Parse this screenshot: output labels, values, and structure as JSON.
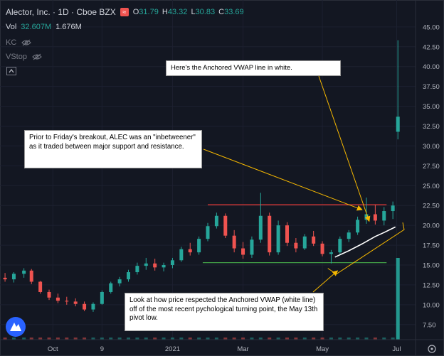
{
  "header": {
    "title": "Alector, Inc. · 1D · Cboe BZX",
    "ohlc": [
      {
        "key": "O",
        "value": "31.79"
      },
      {
        "key": "H",
        "value": "43.32"
      },
      {
        "key": "L",
        "value": "30.83"
      },
      {
        "key": "C",
        "value": "33.69"
      }
    ],
    "volume_label": "Vol",
    "volume_value_1": "32.607M",
    "volume_value_2": "1.676M",
    "indicator_1": "KC",
    "indicator_2": "VStop"
  },
  "annotations": {
    "vwap_note": "Here's the Anchored VWAP line in white.",
    "range_note": "Prior to Friday's breakout, ALEC was an \"inbetweener\" as it traded between major support and resistance.",
    "pivot_note": "Look at how price respected the Anchored VWAP (white line) off of the most recent pychological turning point, the May 13th pivot low."
  },
  "colors": {
    "background": "#131722",
    "up": "#26a69a",
    "down": "#ef5350",
    "resistance": "#e53935",
    "support": "#43a047",
    "vwap": "#ffffff",
    "arrow": "#f5b700"
  },
  "chart_data": {
    "type": "candlestick",
    "y_ticks": [
      "7.50",
      "10.00",
      "12.50",
      "15.00",
      "17.50",
      "20.00",
      "22.50",
      "25.00",
      "27.50",
      "30.00",
      "32.50",
      "35.00",
      "37.50",
      "40.00",
      "42.50",
      "45.00"
    ],
    "ylim": [
      5.6,
      46.6
    ],
    "x_ticks": [
      {
        "label": "Oct",
        "date": "2020-10-01"
      },
      {
        "label": "9",
        "date": "2020-11-09"
      },
      {
        "label": "2021",
        "date": "2021-01-04"
      },
      {
        "label": "Mar",
        "date": "2021-03-01"
      },
      {
        "label": "May",
        "date": "2021-05-03"
      },
      {
        "label": "Jul",
        "date": "2021-07-01"
      }
    ],
    "xlim": [
      "2020-08-20",
      "2021-07-16"
    ],
    "resistance_level": 22.6,
    "support_level": 15.3,
    "resistance_start": "2021-02-01",
    "support_start": "2021-01-28",
    "levels_end": "2021-06-23",
    "anchored_vwap_start": "2021-05-13",
    "anchor_marker": "2021-05-13",
    "series": [
      {
        "date": "2020-08-24",
        "o": 13.4,
        "h": 14.0,
        "l": 12.9,
        "c": 13.2
      },
      {
        "date": "2020-08-31",
        "o": 13.2,
        "h": 14.1,
        "l": 12.8,
        "c": 13.9
      },
      {
        "date": "2020-09-08",
        "o": 13.9,
        "h": 14.6,
        "l": 13.4,
        "c": 14.3
      },
      {
        "date": "2020-09-14",
        "o": 14.3,
        "h": 14.5,
        "l": 12.6,
        "c": 12.9
      },
      {
        "date": "2020-09-21",
        "o": 12.9,
        "h": 13.0,
        "l": 11.4,
        "c": 11.6
      },
      {
        "date": "2020-09-28",
        "o": 11.6,
        "h": 11.9,
        "l": 10.6,
        "c": 10.9
      },
      {
        "date": "2020-10-05",
        "o": 10.9,
        "h": 11.4,
        "l": 10.2,
        "c": 10.5
      },
      {
        "date": "2020-10-12",
        "o": 10.5,
        "h": 11.0,
        "l": 10.0,
        "c": 10.4
      },
      {
        "date": "2020-10-19",
        "o": 10.4,
        "h": 10.8,
        "l": 9.8,
        "c": 10.1
      },
      {
        "date": "2020-10-26",
        "o": 10.1,
        "h": 10.4,
        "l": 9.2,
        "c": 9.4
      },
      {
        "date": "2020-11-02",
        "o": 9.4,
        "h": 10.3,
        "l": 9.1,
        "c": 10.1
      },
      {
        "date": "2020-11-09",
        "o": 10.1,
        "h": 11.8,
        "l": 10.0,
        "c": 11.6
      },
      {
        "date": "2020-11-16",
        "o": 11.6,
        "h": 12.9,
        "l": 11.4,
        "c": 12.7
      },
      {
        "date": "2020-11-23",
        "o": 12.7,
        "h": 13.5,
        "l": 12.3,
        "c": 13.2
      },
      {
        "date": "2020-11-30",
        "o": 13.2,
        "h": 14.4,
        "l": 12.9,
        "c": 14.1
      },
      {
        "date": "2020-12-07",
        "o": 14.1,
        "h": 15.3,
        "l": 13.8,
        "c": 14.9
      },
      {
        "date": "2020-12-14",
        "o": 14.9,
        "h": 15.9,
        "l": 14.4,
        "c": 15.2
      },
      {
        "date": "2020-12-21",
        "o": 15.2,
        "h": 15.8,
        "l": 14.3,
        "c": 14.7
      },
      {
        "date": "2020-12-28",
        "o": 14.7,
        "h": 15.3,
        "l": 14.2,
        "c": 15.0
      },
      {
        "date": "2021-01-04",
        "o": 15.0,
        "h": 15.9,
        "l": 14.6,
        "c": 15.6
      },
      {
        "date": "2021-01-11",
        "o": 15.6,
        "h": 17.3,
        "l": 15.4,
        "c": 17.0
      },
      {
        "date": "2021-01-18",
        "o": 17.0,
        "h": 17.8,
        "l": 16.2,
        "c": 16.6
      },
      {
        "date": "2021-01-25",
        "o": 16.6,
        "h": 18.6,
        "l": 16.3,
        "c": 18.3
      },
      {
        "date": "2021-02-01",
        "o": 18.3,
        "h": 20.3,
        "l": 18.0,
        "c": 19.9
      },
      {
        "date": "2021-02-08",
        "o": 19.9,
        "h": 21.6,
        "l": 19.6,
        "c": 21.2
      },
      {
        "date": "2021-02-15",
        "o": 21.2,
        "h": 21.5,
        "l": 18.4,
        "c": 18.7
      },
      {
        "date": "2021-02-22",
        "o": 18.7,
        "h": 19.4,
        "l": 16.6,
        "c": 17.1
      },
      {
        "date": "2021-03-01",
        "o": 17.1,
        "h": 17.9,
        "l": 15.8,
        "c": 16.3
      },
      {
        "date": "2021-03-08",
        "o": 16.3,
        "h": 18.6,
        "l": 15.9,
        "c": 18.2
      },
      {
        "date": "2021-03-15",
        "o": 18.2,
        "h": 24.1,
        "l": 17.8,
        "c": 21.2
      },
      {
        "date": "2021-03-22",
        "o": 21.2,
        "h": 21.6,
        "l": 16.2,
        "c": 16.6
      },
      {
        "date": "2021-03-29",
        "o": 16.6,
        "h": 20.6,
        "l": 16.3,
        "c": 20.0
      },
      {
        "date": "2021-04-05",
        "o": 20.0,
        "h": 20.4,
        "l": 17.4,
        "c": 17.8
      },
      {
        "date": "2021-04-12",
        "o": 17.8,
        "h": 18.4,
        "l": 16.6,
        "c": 17.1
      },
      {
        "date": "2021-04-19",
        "o": 17.1,
        "h": 18.9,
        "l": 16.9,
        "c": 18.6
      },
      {
        "date": "2021-04-26",
        "o": 18.6,
        "h": 19.3,
        "l": 17.4,
        "c": 17.7
      },
      {
        "date": "2021-05-03",
        "o": 17.7,
        "h": 18.0,
        "l": 16.1,
        "c": 16.4
      },
      {
        "date": "2021-05-10",
        "o": 16.4,
        "h": 16.9,
        "l": 15.2,
        "c": 16.6
      },
      {
        "date": "2021-05-17",
        "o": 16.6,
        "h": 18.6,
        "l": 16.4,
        "c": 18.3
      },
      {
        "date": "2021-05-24",
        "o": 18.3,
        "h": 19.4,
        "l": 17.9,
        "c": 19.1
      },
      {
        "date": "2021-05-31",
        "o": 19.1,
        "h": 21.1,
        "l": 18.8,
        "c": 20.7
      },
      {
        "date": "2021-06-07",
        "o": 20.7,
        "h": 23.5,
        "l": 20.2,
        "c": 21.4
      },
      {
        "date": "2021-06-14",
        "o": 21.4,
        "h": 22.6,
        "l": 20.1,
        "c": 20.6
      },
      {
        "date": "2021-06-21",
        "o": 20.6,
        "h": 22.3,
        "l": 20.0,
        "c": 21.8
      },
      {
        "date": "2021-06-28",
        "o": 21.8,
        "h": 23.0,
        "l": 20.8,
        "c": 22.5
      },
      {
        "date": "2021-07-02",
        "o": 31.79,
        "h": 43.32,
        "l": 30.83,
        "c": 33.69
      }
    ],
    "vwap": [
      {
        "date": "2021-05-13",
        "v": 16.0
      },
      {
        "date": "2021-05-24",
        "v": 16.8
      },
      {
        "date": "2021-06-04",
        "v": 17.7
      },
      {
        "date": "2021-06-14",
        "v": 18.6
      },
      {
        "date": "2021-06-21",
        "v": 19.1
      },
      {
        "date": "2021-06-30",
        "v": 19.8
      }
    ]
  }
}
